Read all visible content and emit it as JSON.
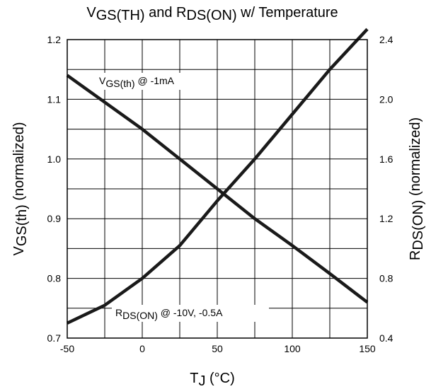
{
  "chart_data": {
    "type": "line",
    "title": {
      "parts": [
        {
          "text": "V",
          "style": "base"
        },
        {
          "text": "GS(TH)",
          "style": "sub"
        },
        {
          "text": " and R",
          "style": "base"
        },
        {
          "text": "DS(ON)",
          "style": "sub"
        },
        {
          "text": " w/ Temperature",
          "style": "base"
        }
      ]
    },
    "xlabel": {
      "parts": [
        {
          "text": "T",
          "style": "base"
        },
        {
          "text": "J",
          "style": "sub"
        },
        {
          "text": " (°C)",
          "style": "base"
        }
      ]
    },
    "ylabel_left": {
      "parts": [
        {
          "text": "V",
          "style": "base"
        },
        {
          "text": "GS(th)",
          "style": "sub"
        },
        {
          "text": " (normalized)",
          "style": "base"
        }
      ]
    },
    "ylabel_right": {
      "parts": [
        {
          "text": "R",
          "style": "base"
        },
        {
          "text": "DS(ON)",
          "style": "sub"
        },
        {
          "text": " (normalized)",
          "style": "base"
        }
      ]
    },
    "xlim": [
      -50,
      150
    ],
    "ylim_left": [
      0.7,
      1.2
    ],
    "ylim_right": [
      0.4,
      2.4
    ],
    "x_ticks": [
      -50,
      0,
      50,
      100,
      150
    ],
    "y_left_ticks": [
      "0.7",
      "0.8",
      "0.9",
      "1.0",
      "1.1",
      "1.2"
    ],
    "y_right_ticks": [
      "0.4",
      "0.8",
      "1.2",
      "1.6",
      "2.0",
      "2.4"
    ],
    "grid": true,
    "series": [
      {
        "name": "VGS(th) @ -1mA",
        "axis": "left",
        "label_parts": [
          {
            "text": "V",
            "style": "base"
          },
          {
            "text": "GS(th)",
            "style": "sub"
          },
          {
            "text": " @ -1mA",
            "style": "base"
          }
        ],
        "x": [
          -50,
          -25,
          0,
          25,
          50,
          75,
          100,
          125,
          150
        ],
        "y": [
          1.14,
          1.095,
          1.05,
          1.0,
          0.95,
          0.9,
          0.855,
          0.808,
          0.76
        ]
      },
      {
        "name": "RDS(ON) @ -10V, -0.5A",
        "axis": "right",
        "label_parts": [
          {
            "text": "R",
            "style": "base"
          },
          {
            "text": "DS(ON)",
            "style": "sub"
          },
          {
            "text": " @ -10V, -0.5A",
            "style": "base"
          }
        ],
        "x": [
          -50,
          -25,
          0,
          25,
          50,
          75,
          100,
          125,
          150
        ],
        "y": [
          0.5,
          0.62,
          0.8,
          1.02,
          1.32,
          1.6,
          1.9,
          2.2,
          2.47
        ]
      }
    ]
  }
}
